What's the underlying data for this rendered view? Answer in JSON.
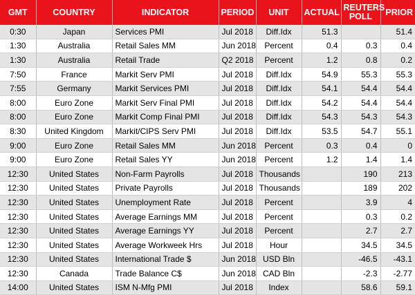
{
  "table": {
    "headers": [
      "GMT",
      "COUNTRY",
      "INDICATOR",
      "PERIOD",
      "UNIT",
      "ACTUAL",
      "REUTERS POLL",
      "PRIOR"
    ],
    "rows": [
      [
        "0:30",
        "Japan",
        "Services PMI",
        "Jul 2018",
        "Diff.Idx",
        "51.3",
        null,
        "51.4"
      ],
      [
        "1:30",
        "Australia",
        "Retail Sales MM",
        "Jun 2018",
        "Percent",
        "0.4",
        "0.3",
        "0.4"
      ],
      [
        "1:30",
        "Australia",
        "Retail Trade",
        "Q2 2018",
        "Percent",
        "1.2",
        "0.8",
        "0.2"
      ],
      [
        "7:50",
        "France",
        "Markit Serv PMI",
        "Jul 2018",
        "Diff.Idx",
        "54.9",
        "55.3",
        "55.3"
      ],
      [
        "7:55",
        "Germany",
        "Markit Services PMI",
        "Jul 2018",
        "Diff.Idx",
        "54.1",
        "54.4",
        "54.4"
      ],
      [
        "8:00",
        "Euro Zone",
        "Markit Serv Final PMI",
        "Jul 2018",
        "Diff.Idx",
        "54.2",
        "54.4",
        "54.4"
      ],
      [
        "8:00",
        "Euro Zone",
        "Markit Comp Final PMI",
        "Jul 2018",
        "Diff.Idx",
        "54.3",
        "54.3",
        "54.3"
      ],
      [
        "8:30",
        "United Kingdom",
        "Markit/CIPS Serv PMI",
        "Jul 2018",
        "Diff.Idx",
        "53.5",
        "54.7",
        "55.1"
      ],
      [
        "9:00",
        "Euro Zone",
        "Retail Sales MM",
        "Jun 2018",
        "Percent",
        "0.3",
        "0.4",
        "0"
      ],
      [
        "9:00",
        "Euro Zone",
        "Retail Sales YY",
        "Jun 2018",
        "Percent",
        "1.2",
        "1.4",
        "1.4"
      ],
      [
        "12:30",
        "United States",
        "Non-Farm Payrolls",
        "Jul 2018",
        "Thousands",
        null,
        "190",
        "213"
      ],
      [
        "12:30",
        "United States",
        "Private Payrolls",
        "Jul 2018",
        "Thousands",
        null,
        "189",
        "202"
      ],
      [
        "12:30",
        "United States",
        "Unemployment Rate",
        "Jul 2018",
        "Percent",
        null,
        "3.9",
        "4"
      ],
      [
        "12:30",
        "United States",
        "Average Earnings MM",
        "Jul 2018",
        "Percent",
        null,
        "0.3",
        "0.2"
      ],
      [
        "12:30",
        "United States",
        "Average Earnings YY",
        "Jul 2018",
        "Percent",
        null,
        "2.7",
        "2.7"
      ],
      [
        "12:30",
        "United States",
        "Average Workweek Hrs",
        "Jul 2018",
        "Hour",
        null,
        "34.5",
        "34.5"
      ],
      [
        "12:30",
        "United States",
        "International Trade $",
        "Jun 2018",
        "USD Bln",
        null,
        "-46.5",
        "-43.1"
      ],
      [
        "12:30",
        "Canada",
        "Trade Balance C$",
        "Jun 2018",
        "CAD Bln",
        null,
        "-2.3",
        "-2.77"
      ],
      [
        "14:00",
        "United States",
        "ISM N-Mfg PMI",
        "Jul 2018",
        "Index",
        null,
        "58.6",
        "59.1"
      ]
    ]
  }
}
